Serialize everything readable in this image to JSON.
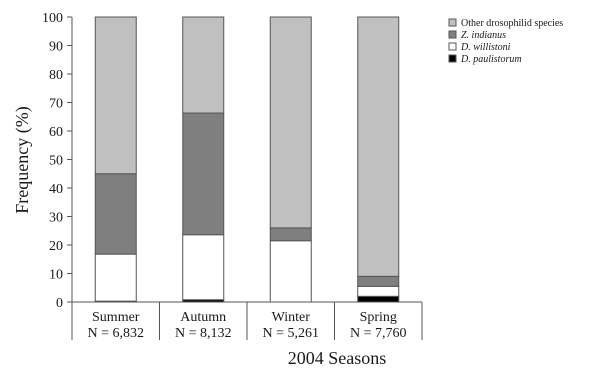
{
  "chart_data": {
    "type": "bar",
    "stacked": true,
    "xlabel": "2004 Seasons",
    "ylabel": "Frequency (%)",
    "ylim": [
      0,
      100
    ],
    "yticks": [
      0,
      10,
      20,
      30,
      40,
      50,
      60,
      70,
      80,
      90,
      100
    ],
    "categories": [
      "Summer",
      "Autumn",
      "Winter",
      "Spring"
    ],
    "sample_sizes": [
      "N = 6,832",
      "N = 8,132",
      "N = 5,261",
      "N = 7,760"
    ],
    "legend_position": "top-right",
    "series": [
      {
        "name": "D. paulistorum",
        "color": "#000000",
        "italic": true,
        "values": [
          0.3,
          0.8,
          0.0,
          2.0
        ]
      },
      {
        "name": "D. willistoni",
        "color": "#ffffff",
        "italic": true,
        "values": [
          16.5,
          22.8,
          21.5,
          3.5
        ]
      },
      {
        "name": "Z. indianus",
        "color": "#7f7f7f",
        "italic": true,
        "values": [
          28.2,
          42.7,
          4.5,
          3.5
        ]
      },
      {
        "name": "Other drosophilid species",
        "color": "#c0c0c0",
        "italic": false,
        "values": [
          55.0,
          33.7,
          74.0,
          91.0
        ]
      }
    ]
  }
}
